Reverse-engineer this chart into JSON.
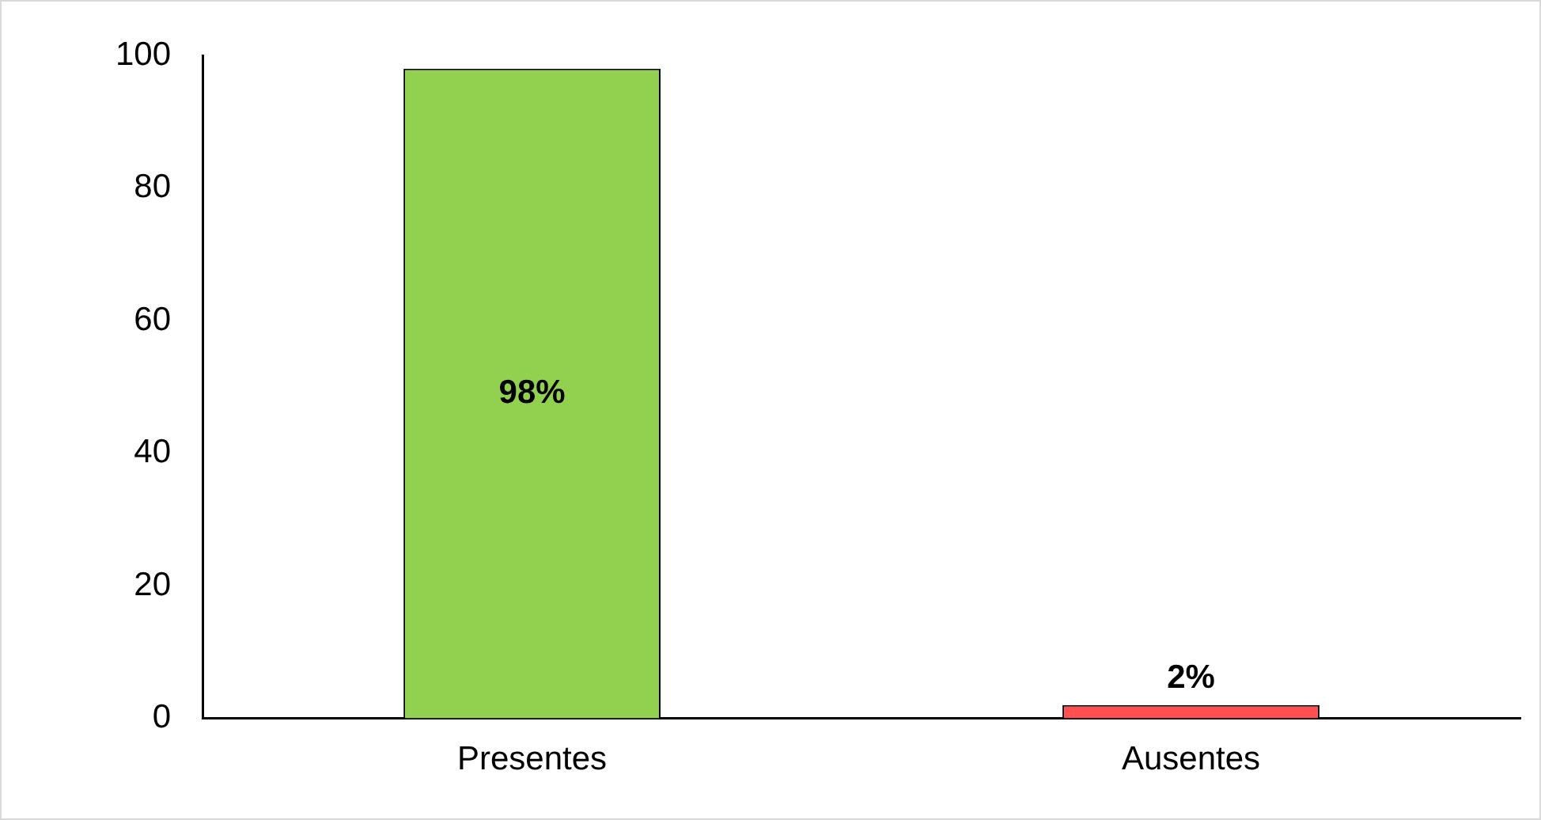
{
  "chart_data": {
    "type": "bar",
    "categories": [
      "Presentes",
      "Ausentes"
    ],
    "values": [
      98,
      2
    ],
    "colors": [
      "#92d050",
      "#ff5050"
    ],
    "value_labels": [
      "98%",
      "2%"
    ],
    "ylim": [
      0,
      100
    ],
    "yticks": [
      0,
      20,
      40,
      60,
      80,
      100
    ],
    "grid": false,
    "legend": false
  }
}
